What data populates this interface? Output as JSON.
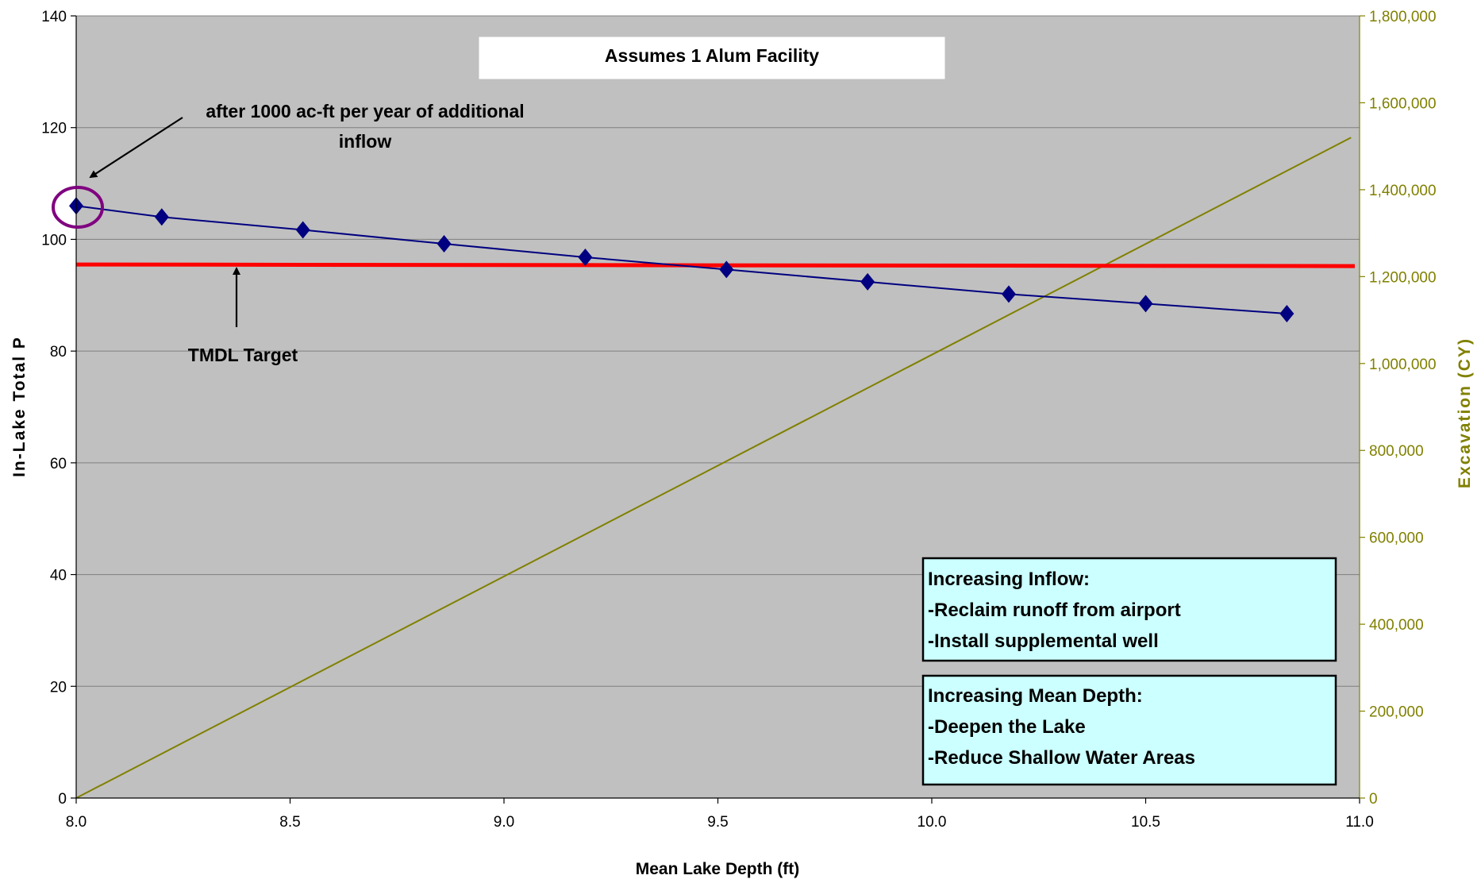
{
  "colors": {
    "plot_bg": "#c0c0c0",
    "series_p": "#000080",
    "series_exc": "#808000",
    "tmdl": "#ff0000",
    "highlight_circle": "#800080",
    "info_box": "#ccffff",
    "gridline": "#7f7f7f"
  },
  "chart_data": {
    "type": "line",
    "xlabel": "Mean Lake Depth (ft)",
    "ylabel": "In-Lake Total P",
    "y2label": "Excavation (CY)",
    "xlim": [
      8.0,
      11.0
    ],
    "ylim": [
      0,
      140
    ],
    "y2lim": [
      0,
      1800000
    ],
    "x_ticks": [
      "8.0",
      "8.5",
      "9.0",
      "9.5",
      "10.0",
      "10.5",
      "11.0"
    ],
    "y_ticks": [
      "0",
      "20",
      "40",
      "60",
      "80",
      "100",
      "120",
      "140"
    ],
    "y2_ticks": [
      "0",
      "200,000",
      "400,000",
      "600,000",
      "800,000",
      "1,000,000",
      "1,200,000",
      "1,400,000",
      "1,600,000",
      "1,800,000"
    ],
    "grid": "horizontal",
    "series": [
      {
        "axis": "left",
        "marker": "diamond",
        "x": [
          8.0,
          8.2,
          8.53,
          8.86,
          9.19,
          9.52,
          9.85,
          10.18,
          10.5,
          10.83
        ],
        "values": [
          106,
          104,
          101.7,
          99.2,
          96.8,
          94.6,
          92.4,
          90.2,
          88.5,
          86.7
        ]
      },
      {
        "axis": "right",
        "marker": "none",
        "x": [
          8.0,
          10.98
        ],
        "values": [
          0,
          1520000
        ]
      }
    ],
    "tmdl_target": 95.5,
    "annotations": {
      "title_box": "Assumes 1 Alum Facility",
      "inflow_note_line1": "after 1000 ac-ft per year of additional",
      "inflow_note_line2": "inflow",
      "tmdl_label": "TMDL Target"
    },
    "info_boxes": [
      {
        "lines": [
          "Increasing Inflow:",
          "-Reclaim runoff from airport",
          "-Install supplemental well"
        ]
      },
      {
        "lines": [
          "Increasing Mean Depth:",
          "-Deepen the Lake",
          "-Reduce Shallow Water Areas"
        ]
      }
    ]
  }
}
